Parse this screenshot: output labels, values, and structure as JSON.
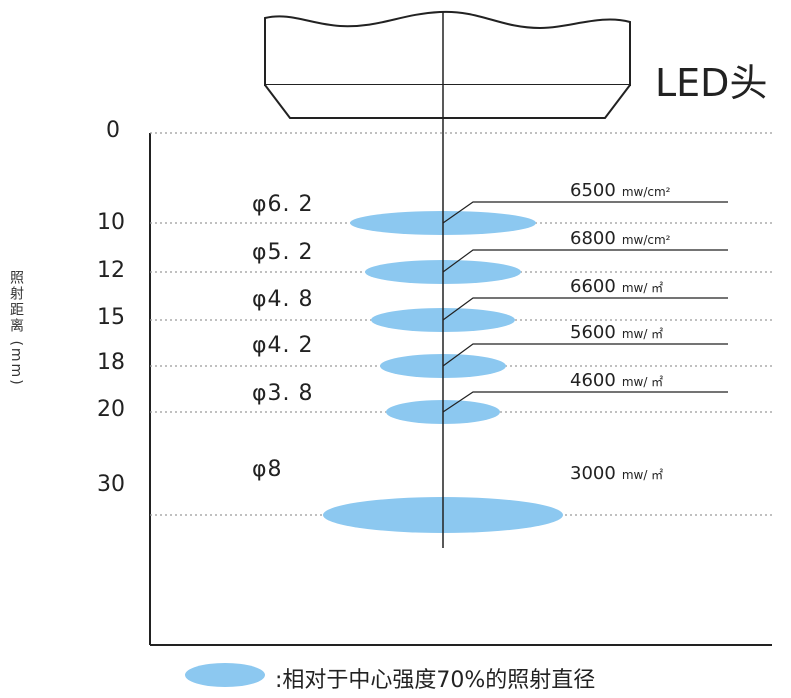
{
  "header": {
    "label": "LED头"
  },
  "axis": {
    "title": "照射距离 (mm)",
    "ticks": [
      {
        "value": 0,
        "label": "0"
      },
      {
        "value": 10,
        "label": "10"
      },
      {
        "value": 12,
        "label": "12"
      },
      {
        "value": 15,
        "label": "15"
      },
      {
        "value": 18,
        "label": "18"
      },
      {
        "value": 20,
        "label": "20"
      },
      {
        "value": 30,
        "label": "30"
      }
    ]
  },
  "spots": [
    {
      "distance": 10,
      "diameter_label": "φ6. 2",
      "diameter": 6.2,
      "irradiance": "6500",
      "unit": "mw/cm²"
    },
    {
      "distance": 12,
      "diameter_label": "φ5. 2",
      "diameter": 5.2,
      "irradiance": "6800",
      "unit": "mw/cm²"
    },
    {
      "distance": 15,
      "diameter_label": "φ4. 8",
      "diameter": 4.8,
      "irradiance": "6600",
      "unit": "mw/ ㎡"
    },
    {
      "distance": 18,
      "diameter_label": "φ4. 2",
      "diameter": 4.2,
      "irradiance": "5600",
      "unit": "mw/ ㎡"
    },
    {
      "distance": 20,
      "diameter_label": "φ3. 8",
      "diameter": 3.8,
      "irradiance": "4600",
      "unit": "mw/ ㎡"
    },
    {
      "distance": 30,
      "diameter_label": "φ8",
      "diameter": 8,
      "irradiance": "3000",
      "unit": "mw/ ㎡"
    }
  ],
  "legend": {
    "text": ":相对于中心强度70%的照射直径"
  },
  "colors": {
    "spot": "#8cc8f0",
    "dotted": "#9a9a9a",
    "line": "#222222"
  }
}
